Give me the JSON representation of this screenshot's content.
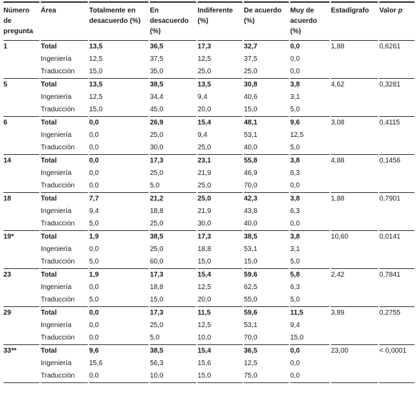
{
  "colors": {
    "text": "#1a1a1a",
    "rule": "#2f2f2f",
    "background": "#ffffff"
  },
  "table": {
    "header": {
      "numero": "Número de pregunta",
      "area": "Área",
      "totalmente": "Totalmente en desacuerdo (%)",
      "en_desacuerdo": "En desacuerdo (%)",
      "indiferente": "Indiferente (%)",
      "de_acuerdo": "De acuerdo (%)",
      "muy_de_acuerdo": "Muy de acuerdo (%)",
      "estadigrafo": "Estadígrafo",
      "valor": "Valor",
      "p_symbol": "p"
    },
    "groups": [
      {
        "question": "1",
        "estadigrafo": "1,88",
        "valor_p": "0,6261",
        "rows": [
          {
            "area": "Total",
            "values": [
              "13,5",
              "36,5",
              "17,3",
              "32,7",
              "0,0"
            ]
          },
          {
            "area": "Ingeniería",
            "values": [
              "12,5",
              "37,5",
              "12,5",
              "37,5",
              "0,0"
            ]
          },
          {
            "area": "Traducción",
            "values": [
              "15,0",
              "35,0",
              "25,0",
              "25,0",
              "0,0"
            ]
          }
        ]
      },
      {
        "question": "5",
        "estadigrafo": "4,62",
        "valor_p": "0,3281",
        "rows": [
          {
            "area": "Total",
            "values": [
              "13,5",
              "38,5",
              "13,5",
              "30,8",
              "3,8"
            ]
          },
          {
            "area": "Ingeniería",
            "values": [
              "12,5",
              "34,4",
              "9,4",
              "40,6",
              "3,1"
            ]
          },
          {
            "area": "Traducción",
            "values": [
              "15,0",
              "45,0",
              "20,0",
              "15,0",
              "5,0"
            ]
          }
        ]
      },
      {
        "question": "6",
        "estadigrafo": "3,08",
        "valor_p": "0,4115",
        "rows": [
          {
            "area": "Total",
            "values": [
              "0,0",
              "26,9",
              "15,4",
              "48,1",
              "9,6"
            ]
          },
          {
            "area": "Ingeniería",
            "values": [
              "0,0",
              "25,0",
              "9,4",
              "53,1",
              "12,5"
            ]
          },
          {
            "area": "Traducción",
            "values": [
              "0,0",
              "30,0",
              "25,0",
              "40,0",
              "5,0"
            ]
          }
        ]
      },
      {
        "question": "14",
        "estadigrafo": "4,88",
        "valor_p": "0,1456",
        "rows": [
          {
            "area": "Total",
            "values": [
              "0,0",
              "17,3",
              "23,1",
              "55,8",
              "3,8"
            ]
          },
          {
            "area": "Ingeniería",
            "values": [
              "0,0",
              "25,0",
              "21,9",
              "46,9",
              "6,3"
            ]
          },
          {
            "area": "Traducción",
            "values": [
              "0,0",
              "5,0",
              "25,0",
              "70,0",
              "0,0"
            ]
          }
        ]
      },
      {
        "question": "18",
        "estadigrafo": "1,88",
        "valor_p": "0,7901",
        "rows": [
          {
            "area": "Total",
            "values": [
              "7,7",
              "21,2",
              "25,0",
              "42,3",
              "3,8"
            ]
          },
          {
            "area": "Ingeniería",
            "values": [
              "9,4",
              "18,8",
              "21,9",
              "43,8",
              "6,3"
            ]
          },
          {
            "area": "Traducción",
            "values": [
              "5,0",
              "25,0",
              "30,0",
              "40,0",
              "0,0"
            ]
          }
        ]
      },
      {
        "question": "19*",
        "estadigrafo": "10,60",
        "valor_p": "0,0141",
        "rows": [
          {
            "area": "Total",
            "values": [
              "1,9",
              "38,5",
              "17,3",
              "38,5",
              "3,8"
            ]
          },
          {
            "area": "Ingeniería",
            "values": [
              "0,0",
              "25,0",
              "18,8",
              "53,1",
              "3,1"
            ]
          },
          {
            "area": "Traducción",
            "values": [
              "5,0",
              "60,0",
              "15,0",
              "15,0",
              "5,0"
            ]
          }
        ]
      },
      {
        "question": "23",
        "estadigrafo": "2,42",
        "valor_p": "0,7841",
        "rows": [
          {
            "area": "Total",
            "values": [
              "1,9",
              "17,3",
              "15,4",
              "59,6",
              "5,8"
            ]
          },
          {
            "area": "Ingeniería",
            "values": [
              "0,0",
              "18,8",
              "12,5",
              "62,5",
              "6,3"
            ]
          },
          {
            "area": "Traducción",
            "values": [
              "5,0",
              "15,0",
              "20,0",
              "55,0",
              "5,0"
            ]
          }
        ]
      },
      {
        "question": "29",
        "estadigrafo": "3,89",
        "valor_p": "0,2755",
        "rows": [
          {
            "area": "Total",
            "values": [
              "0,0",
              "17,3",
              "11,5",
              "59,6",
              "11,5"
            ]
          },
          {
            "area": "Ingeniería",
            "values": [
              "0,0",
              "25,0",
              "12,5",
              "53,1",
              "9,4"
            ]
          },
          {
            "area": "Traducción",
            "values": [
              "0,0",
              "5,0",
              "10,0",
              "70,0",
              "15,0"
            ]
          }
        ]
      },
      {
        "question": "33**",
        "estadigrafo": "23,00",
        "valor_p": "< 0,0001",
        "rows": [
          {
            "area": "Total",
            "values": [
              "9,6",
              "38,5",
              "15,4",
              "36,5",
              "0,0"
            ]
          },
          {
            "area": "Ingeniería",
            "values": [
              "15,6",
              "56,3",
              "15,6",
              "12,5",
              "0,0"
            ]
          },
          {
            "area": "Traducción",
            "values": [
              "0,0",
              "10,0",
              "15,0",
              "75,0",
              "0,0"
            ]
          }
        ]
      }
    ]
  }
}
